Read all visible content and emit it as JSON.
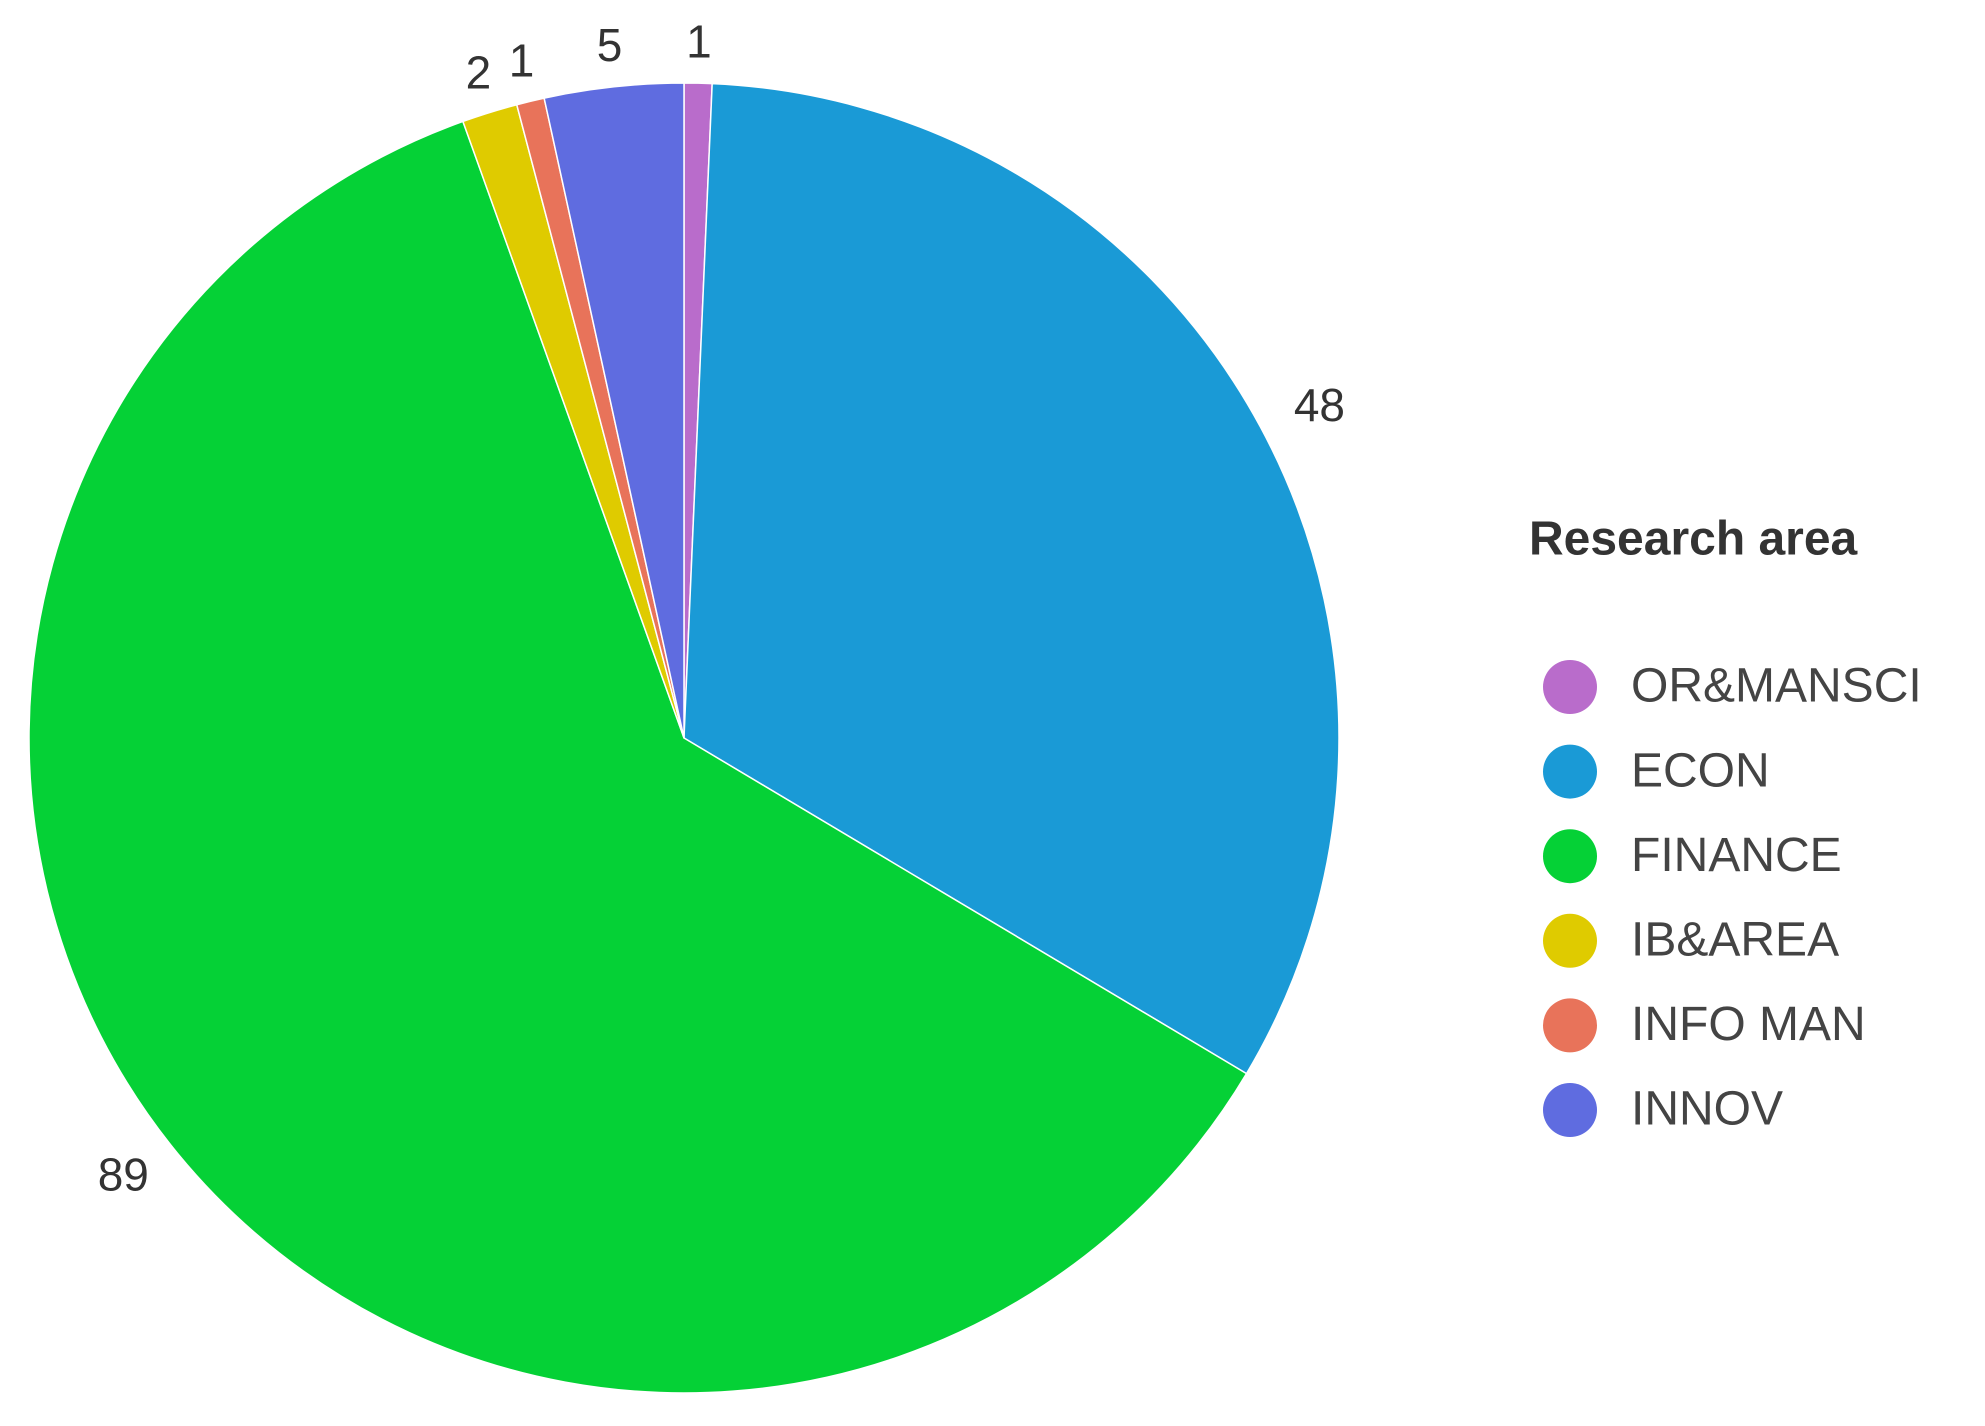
{
  "chart_data": {
    "type": "pie",
    "legend_title": "Research area",
    "categories": [
      "OR&MANSCI",
      "ECON",
      "FINANCE",
      "IB&AREA",
      "INFO MAN",
      "INNOV"
    ],
    "values": [
      1,
      48,
      89,
      2,
      1,
      5
    ],
    "colors": [
      "#b96ccb",
      "#1a9ad6",
      "#05d136",
      "#dfcb00",
      "#e8735a",
      "#5f6ce0"
    ]
  }
}
